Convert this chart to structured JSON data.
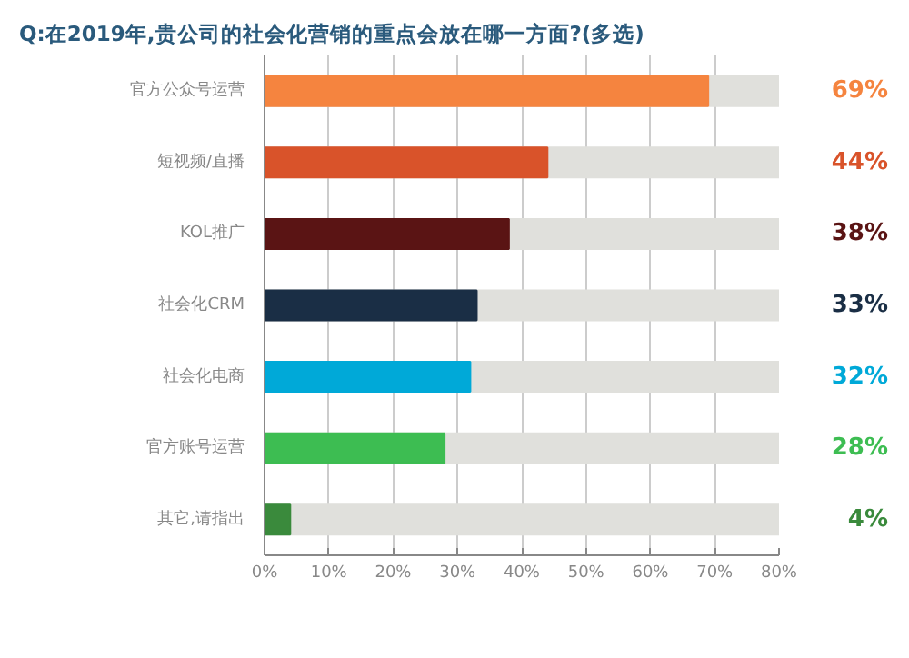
{
  "chart_data": {
    "type": "bar",
    "orientation": "horizontal",
    "title": "Q:在2019年,贵公司的社会化营销的重点会放在哪一方面?(多选)",
    "categories": [
      "官方公众号运营",
      "短视频/直播",
      "KOL推广",
      "社会化CRM",
      "社会化电商",
      "官方账号运营",
      "其它,请指出"
    ],
    "values": [
      69,
      44,
      38,
      33,
      32,
      28,
      4
    ],
    "colors": [
      "#f5843f",
      "#d9532a",
      "#5a1414",
      "#1a2e45",
      "#00a9d8",
      "#3dbd52",
      "#3a8a3c"
    ],
    "value_labels": [
      "69%",
      "44%",
      "38%",
      "33%",
      "32%",
      "28%",
      "4%"
    ],
    "xlim": [
      0,
      80
    ],
    "xticks": [
      {
        "value": 0,
        "label": "0%"
      },
      {
        "value": 10,
        "label": "10%"
      },
      {
        "value": 20,
        "label": "20%"
      },
      {
        "value": 30,
        "label": "30%"
      },
      {
        "value": 40,
        "label": "40%"
      },
      {
        "value": 50,
        "label": "50%"
      },
      {
        "value": 60,
        "label": "60%"
      },
      {
        "value": 70,
        "label": "70%"
      },
      {
        "value": 80,
        "label": "80%"
      }
    ],
    "grid": "x"
  }
}
